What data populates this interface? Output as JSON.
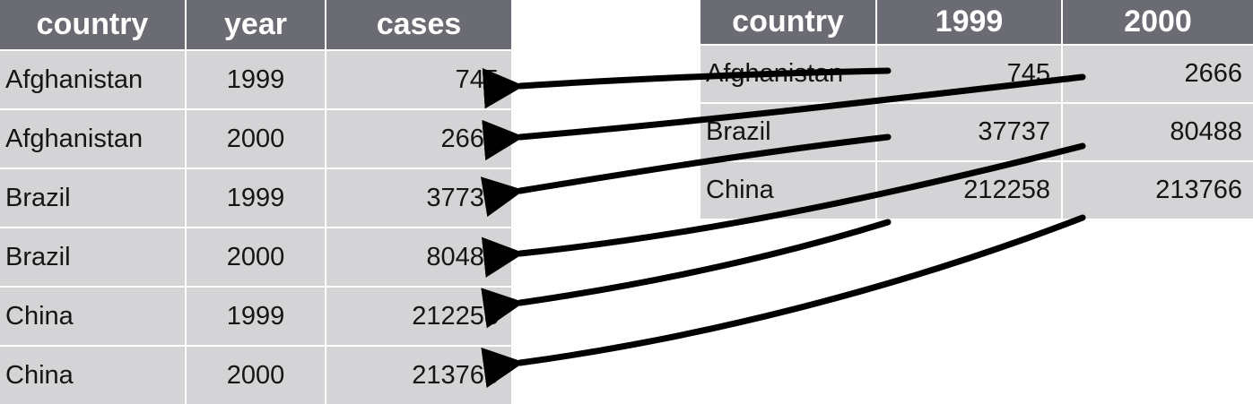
{
  "long_table": {
    "headers": [
      "country",
      "year",
      "cases"
    ],
    "rows": [
      [
        "Afghanistan",
        "1999",
        "745"
      ],
      [
        "Afghanistan",
        "2000",
        "2666"
      ],
      [
        "Brazil",
        "1999",
        "37737"
      ],
      [
        "Brazil",
        "2000",
        "80488"
      ],
      [
        "China",
        "1999",
        "212258"
      ],
      [
        "China",
        "2000",
        "213766"
      ]
    ]
  },
  "wide_table": {
    "headers": [
      "country",
      "1999",
      "2000"
    ],
    "rows": [
      [
        "Afghanistan",
        "745",
        "2666"
      ],
      [
        "Brazil",
        "37737",
        "80488"
      ],
      [
        "China",
        "212258",
        "213766"
      ]
    ]
  },
  "colors": {
    "header_bg": "#6b6b73",
    "cell_bg": "#d4d4d6",
    "arrow": "#000000"
  }
}
